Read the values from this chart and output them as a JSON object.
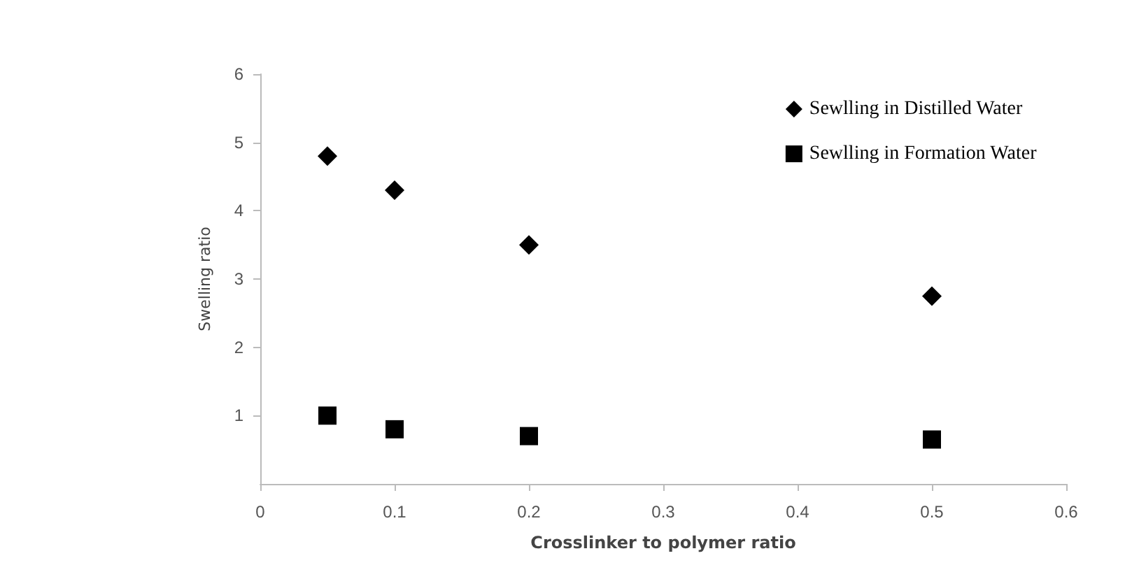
{
  "chart_data": {
    "type": "scatter",
    "xlabel": "Crosslinker to polymer ratio",
    "ylabel": "Swelling ratio",
    "x": [
      0.05,
      0.1,
      0.2,
      0.5
    ],
    "series": [
      {
        "name": "Sewlling in Distilled Water",
        "color": "#000000",
        "marker": "diamond",
        "values": [
          4.8,
          4.3,
          3.5,
          2.75
        ]
      },
      {
        "name": "Sewlling in Formation Water",
        "color": "#000000",
        "marker": "square",
        "values": [
          1.0,
          0.8,
          0.7,
          0.65
        ]
      }
    ],
    "xlim": [
      0,
      0.6
    ],
    "xticks": [
      0,
      0.1,
      0.2,
      0.3,
      0.4,
      0.5,
      0.6
    ],
    "ylim": [
      0,
      6
    ],
    "yticks": [
      1,
      2,
      3,
      4,
      5,
      6
    ],
    "grid": false,
    "legend": "top right"
  }
}
